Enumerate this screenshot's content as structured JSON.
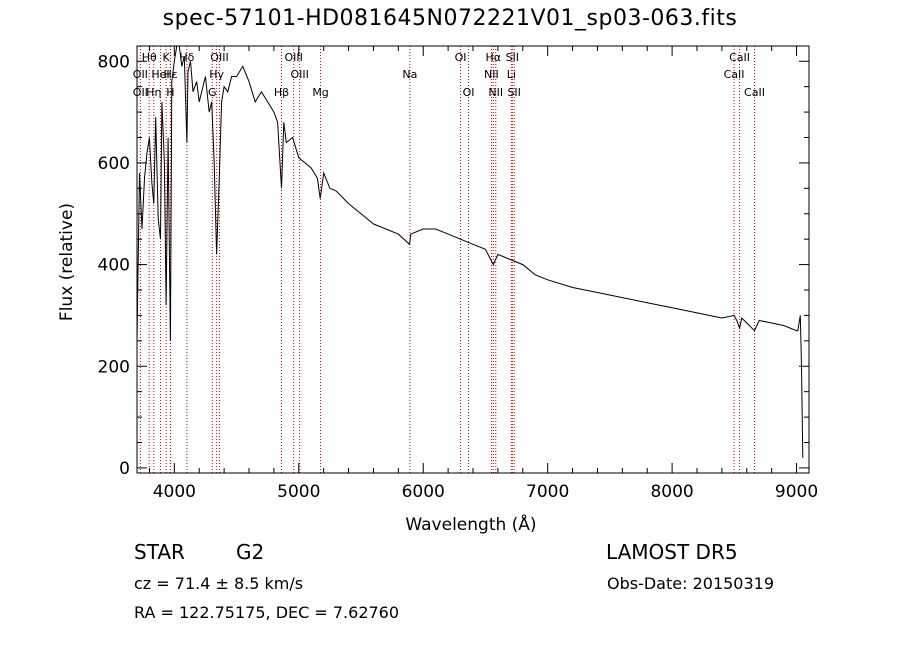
{
  "header": {
    "title": "spec-57101-HD081645N072221V01_sp03-063.fits"
  },
  "info": {
    "object_type": "STAR",
    "spectral_class": "G2",
    "survey": "LAMOST  DR5",
    "cz": "cz = 71.4 ± 8.5 km/s",
    "obs_date": "Obs-Date: 20150319",
    "radec": "RA = 122.75175, DEC =   7.62760"
  },
  "chart_data": {
    "type": "line",
    "title": "spec-57101-HD081645N072221V01_sp03-063.fits",
    "xlabel": "Wavelength (Å)",
    "ylabel": "Flux (relative)",
    "xlim": [
      3700,
      9100
    ],
    "ylim": [
      -10,
      830
    ],
    "xticks": [
      4000,
      5000,
      6000,
      7000,
      8000,
      9000
    ],
    "yticks": [
      0,
      200,
      400,
      600,
      800
    ],
    "grid": false,
    "line_color": "#000000",
    "marker_color": "#cc0000",
    "spectrum": {
      "x": [
        3700,
        3720,
        3740,
        3760,
        3780,
        3800,
        3820,
        3835,
        3850,
        3870,
        3889,
        3900,
        3920,
        3934,
        3950,
        3968,
        3980,
        4000,
        4020,
        4040,
        4060,
        4080,
        4101,
        4110,
        4130,
        4150,
        4180,
        4200,
        4220,
        4250,
        4280,
        4300,
        4320,
        4340,
        4360,
        4380,
        4400,
        4430,
        4460,
        4500,
        4550,
        4600,
        4650,
        4700,
        4750,
        4800,
        4830,
        4861,
        4880,
        4900,
        4950,
        5000,
        5050,
        5100,
        5150,
        5172,
        5200,
        5250,
        5300,
        5400,
        5500,
        5600,
        5700,
        5800,
        5890,
        5900,
        6000,
        6100,
        6200,
        6300,
        6400,
        6500,
        6563,
        6600,
        6700,
        6800,
        6900,
        7000,
        7200,
        7400,
        7600,
        7800,
        8000,
        8200,
        8400,
        8498,
        8520,
        8542,
        8560,
        8600,
        8662,
        8700,
        8800,
        8900,
        9000,
        9010,
        9030,
        9040,
        9050
      ],
      "y": [
        250,
        580,
        470,
        570,
        620,
        650,
        560,
        520,
        690,
        490,
        450,
        720,
        600,
        320,
        650,
        250,
        760,
        800,
        840,
        830,
        790,
        810,
        640,
        780,
        800,
        740,
        760,
        720,
        740,
        770,
        700,
        720,
        600,
        420,
        560,
        720,
        750,
        740,
        770,
        770,
        790,
        760,
        720,
        740,
        720,
        700,
        680,
        550,
        680,
        640,
        650,
        610,
        600,
        590,
        570,
        530,
        580,
        550,
        545,
        520,
        500,
        480,
        470,
        460,
        440,
        460,
        470,
        470,
        460,
        450,
        440,
        430,
        400,
        420,
        410,
        400,
        380,
        370,
        355,
        345,
        335,
        325,
        315,
        305,
        295,
        300,
        290,
        275,
        295,
        285,
        270,
        290,
        285,
        280,
        270,
        270,
        300,
        200,
        20
      ]
    },
    "lines": [
      {
        "label": "OII",
        "x": 3727,
        "row": 2
      },
      {
        "label": "OII",
        "x": 3727,
        "row": 3
      },
      {
        "label": "Hθ",
        "x": 3798,
        "row": 1
      },
      {
        "label": "Hη",
        "x": 3835,
        "row": 3
      },
      {
        "label": "HeI",
        "x": 3889,
        "row": 2
      },
      {
        "label": "K",
        "x": 3934,
        "row": 1
      },
      {
        "label": "H",
        "x": 3968,
        "row": 3
      },
      {
        "label": "Hε",
        "x": 3970,
        "row": 2
      },
      {
        "label": "Hδ",
        "x": 4101,
        "row": 1
      },
      {
        "label": "OIII",
        "x": 4363,
        "row": 1
      },
      {
        "label": "Hγ",
        "x": 4340,
        "row": 2
      },
      {
        "label": "G",
        "x": 4305,
        "row": 3
      },
      {
        "label": "OIII",
        "x": 4959,
        "row": 1
      },
      {
        "label": "OIII",
        "x": 5007,
        "row": 2
      },
      {
        "label": "Hβ",
        "x": 4861,
        "row": 3
      },
      {
        "label": "Mg",
        "x": 5175,
        "row": 3
      },
      {
        "label": "Na",
        "x": 5893,
        "row": 2
      },
      {
        "label": "OI",
        "x": 6300,
        "row": 1
      },
      {
        "label": "OI",
        "x": 6364,
        "row": 3
      },
      {
        "label": "Hα",
        "x": 6563,
        "row": 1
      },
      {
        "label": "NII",
        "x": 6548,
        "row": 2
      },
      {
        "label": "NII",
        "x": 6583,
        "row": 3
      },
      {
        "label": "SII",
        "x": 6716,
        "row": 1
      },
      {
        "label": "Li",
        "x": 6708,
        "row": 2
      },
      {
        "label": "SII",
        "x": 6731,
        "row": 3
      },
      {
        "label": "CaII",
        "x": 8542,
        "row": 1
      },
      {
        "label": "CaII",
        "x": 8498,
        "row": 2
      },
      {
        "label": "CaII",
        "x": 8662,
        "row": 3
      }
    ]
  }
}
